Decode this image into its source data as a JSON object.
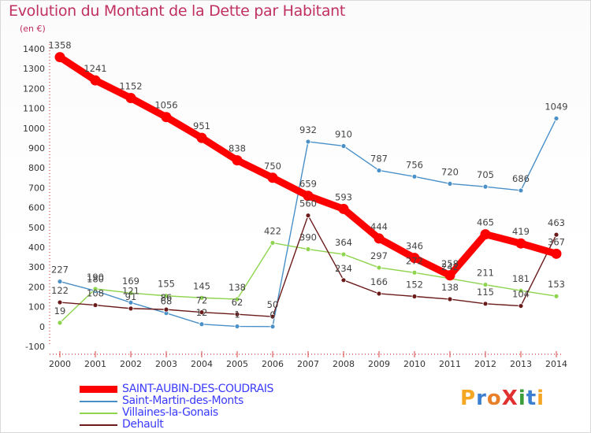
{
  "header": {
    "title": "Evolution du Montant de la Dette par Habitant",
    "unit": "(en €)"
  },
  "brand": {
    "text": "ProXiti",
    "colors": [
      "#f5a623",
      "#3a7fd0",
      "#e8802a",
      "#e03030",
      "#3a9d3a",
      "#3a7fd0",
      "#f5a623"
    ]
  },
  "chart_data": {
    "type": "line",
    "title": "Evolution du Montant de la Dette par Habitant",
    "ylabel": "(en €)",
    "xlabel": "",
    "x": [
      "2000",
      "2001",
      "2002",
      "2003",
      "2004",
      "2005",
      "2006",
      "2007",
      "2008",
      "2009",
      "2010",
      "2011",
      "2012",
      "2013",
      "2014"
    ],
    "ylim": [
      -100,
      1400
    ],
    "yticks": [
      -100,
      0,
      100,
      200,
      300,
      400,
      500,
      600,
      700,
      800,
      900,
      1000,
      1100,
      1200,
      1300,
      1400
    ],
    "grid": false,
    "legend": "bottom-left",
    "series": [
      {
        "name": "SAINT-AUBIN-DES-COUDRAIS",
        "color": "#ff0000",
        "values": [
          1358,
          1241,
          1152,
          1056,
          951,
          838,
          750,
          659,
          593,
          444,
          346,
          258,
          465,
          419,
          367
        ]
      },
      {
        "name": "Saint-Martin-des-Monts",
        "color": "#4a90c8",
        "values": [
          227,
          180,
          121,
          68,
          12,
          1,
          0,
          932,
          910,
          787,
          756,
          720,
          705,
          686,
          1049
        ]
      },
      {
        "name": "Villaines-la-Gonais",
        "color": "#8ed44e",
        "values": [
          19,
          190,
          169,
          155,
          145,
          138,
          422,
          390,
          364,
          297,
          272,
          242,
          211,
          181,
          153
        ]
      },
      {
        "name": "Dehault",
        "color": "#6b1a1a",
        "values": [
          122,
          108,
          91,
          86,
          72,
          62,
          50,
          560,
          234,
          166,
          152,
          138,
          115,
          104,
          463
        ]
      }
    ]
  }
}
